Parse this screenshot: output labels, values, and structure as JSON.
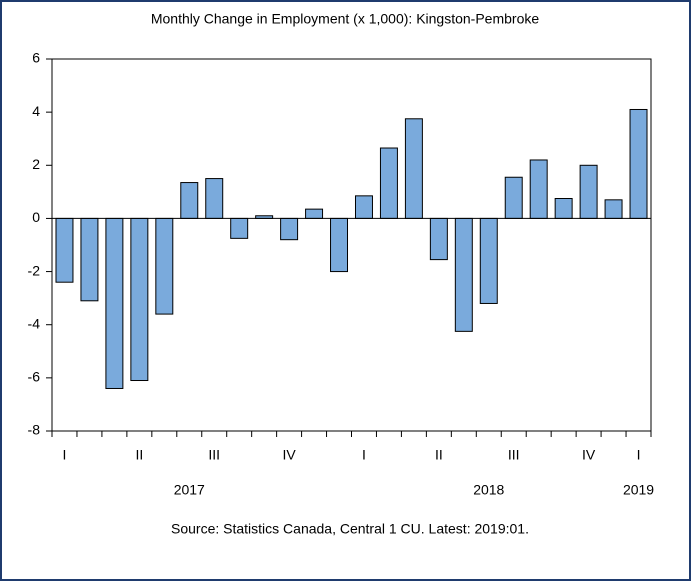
{
  "chart_data": {
    "type": "bar",
    "title": "Monthly Change in Employment (x 1,000): Kingston-Pembroke",
    "source": "Source: Statistics Canada, Central 1 CU. Latest: 2019:01.",
    "categories": [
      "I",
      null,
      null,
      "II",
      null,
      null,
      "III",
      null,
      null,
      "IV",
      null,
      null,
      "I",
      null,
      null,
      "II",
      null,
      null,
      "III",
      null,
      null,
      "IV",
      null,
      "I"
    ],
    "years": [
      null,
      null,
      null,
      null,
      null,
      "2017",
      null,
      null,
      null,
      null,
      null,
      null,
      null,
      null,
      null,
      null,
      null,
      "2018",
      null,
      null,
      null,
      null,
      null,
      "2019"
    ],
    "values": [
      -2.4,
      -3.1,
      -6.4,
      -6.1,
      -3.6,
      1.35,
      1.5,
      -0.75,
      0.1,
      -0.8,
      0.35,
      -2.0,
      0.85,
      2.65,
      3.75,
      -1.55,
      -4.25,
      -3.2,
      1.55,
      2.2,
      0.75,
      2.0,
      0.7,
      4.1
    ],
    "color": "#7aaadc",
    "ylim": [
      -8,
      6
    ],
    "yticks": [
      -8,
      -6,
      -4,
      -2,
      0,
      2,
      4,
      6
    ]
  }
}
